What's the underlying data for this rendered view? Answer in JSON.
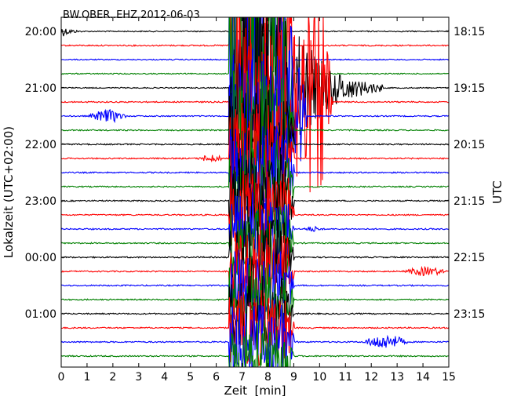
{
  "chart_data": {
    "type": "line",
    "title": "BW.OBER..EHZ 2012-06-03",
    "xlabel": "Zeit  [min]",
    "ylabel_left": "Lokalzeit (UTC+02:00)",
    "ylabel_right": "UTC",
    "xlim": [
      0,
      15
    ],
    "x_ticks": [
      "0",
      "1",
      "2",
      "3",
      "4",
      "5",
      "6",
      "7",
      "8",
      "9",
      "10",
      "11",
      "12",
      "13",
      "14",
      "15"
    ],
    "y_ticks_left": [
      "20:00",
      "21:00",
      "22:00",
      "23:00",
      "00:00",
      "01:00"
    ],
    "y_ticks_right": [
      "18:15",
      "19:15",
      "20:15",
      "21:15",
      "22:15",
      "23:15"
    ],
    "trace_colors": [
      "#000000",
      "#ff0000",
      "#0000ff",
      "#008000"
    ],
    "traces_per_row_label": 4,
    "traces": [
      {
        "color": "#000000",
        "noise": 0.12,
        "events": [
          {
            "t": 0.0,
            "t_end": 1.3,
            "amp": 1.3,
            "kind": "decay"
          }
        ]
      },
      {
        "color": "#ff0000",
        "noise": 0.14,
        "events": [
          {
            "t": 6.5,
            "t_end": 9.0,
            "amp": 20,
            "kind": "main"
          }
        ]
      },
      {
        "color": "#0000ff",
        "noise": 0.12,
        "events": [
          {
            "t": 6.5,
            "t_end": 9.0,
            "amp": 20,
            "kind": "main"
          }
        ]
      },
      {
        "color": "#008000",
        "noise": 0.12,
        "events": [
          {
            "t": 6.5,
            "t_end": 9.0,
            "amp": 20,
            "kind": "main"
          }
        ]
      },
      {
        "color": "#000000",
        "noise": 0.12,
        "events": [
          {
            "t": 6.5,
            "t_end": 12.5,
            "amp": 20,
            "kind": "coda"
          }
        ]
      },
      {
        "color": "#ff0000",
        "noise": 0.14,
        "events": [
          {
            "t": 6.5,
            "t_end": 10.5,
            "amp": 20,
            "kind": "main"
          }
        ]
      },
      {
        "color": "#0000ff",
        "noise": 0.13,
        "events": [
          {
            "t": 1.0,
            "t_end": 2.6,
            "amp": 1.4,
            "kind": "burst"
          },
          {
            "t": 6.5,
            "t_end": 9.5,
            "amp": 14,
            "kind": "main"
          }
        ]
      },
      {
        "color": "#008000",
        "noise": 0.14,
        "events": [
          {
            "t": 6.5,
            "t_end": 9.0,
            "amp": 14,
            "kind": "main"
          }
        ]
      },
      {
        "color": "#000000",
        "noise": 0.14,
        "events": [
          {
            "t": 6.5,
            "t_end": 9.0,
            "amp": 12,
            "kind": "main"
          }
        ]
      },
      {
        "color": "#ff0000",
        "noise": 0.14,
        "events": [
          {
            "t": 5.2,
            "t_end": 6.4,
            "amp": 0.8,
            "kind": "burst"
          },
          {
            "t": 6.5,
            "t_end": 9.0,
            "amp": 12,
            "kind": "main"
          }
        ]
      },
      {
        "color": "#0000ff",
        "noise": 0.14,
        "events": [
          {
            "t": 6.5,
            "t_end": 9.0,
            "amp": 10,
            "kind": "main"
          }
        ]
      },
      {
        "color": "#008000",
        "noise": 0.14,
        "events": [
          {
            "t": 6.5,
            "t_end": 9.0,
            "amp": 10,
            "kind": "main"
          }
        ]
      },
      {
        "color": "#000000",
        "noise": 0.14,
        "events": [
          {
            "t": 6.5,
            "t_end": 9.0,
            "amp": 10,
            "kind": "main"
          }
        ]
      },
      {
        "color": "#ff0000",
        "noise": 0.14,
        "events": [
          {
            "t": 6.5,
            "t_end": 9.0,
            "amp": 10,
            "kind": "main"
          }
        ]
      },
      {
        "color": "#0000ff",
        "noise": 0.14,
        "events": [
          {
            "t": 6.5,
            "t_end": 9.0,
            "amp": 8,
            "kind": "main"
          },
          {
            "t": 9.3,
            "t_end": 10.2,
            "amp": 0.6,
            "kind": "burst"
          }
        ]
      },
      {
        "color": "#008000",
        "noise": 0.14,
        "events": [
          {
            "t": 6.5,
            "t_end": 9.0,
            "amp": 8,
            "kind": "main"
          }
        ]
      },
      {
        "color": "#000000",
        "noise": 0.14,
        "events": [
          {
            "t": 6.5,
            "t_end": 9.0,
            "amp": 8,
            "kind": "main"
          }
        ]
      },
      {
        "color": "#ff0000",
        "noise": 0.14,
        "events": [
          {
            "t": 6.5,
            "t_end": 9.0,
            "amp": 8,
            "kind": "main"
          },
          {
            "t": 13.2,
            "t_end": 15.0,
            "amp": 1.0,
            "kind": "burst"
          }
        ]
      },
      {
        "color": "#0000ff",
        "noise": 0.14,
        "events": [
          {
            "t": 6.5,
            "t_end": 9.0,
            "amp": 8,
            "kind": "main"
          }
        ]
      },
      {
        "color": "#008000",
        "noise": 0.14,
        "events": [
          {
            "t": 6.5,
            "t_end": 9.0,
            "amp": 8,
            "kind": "main"
          }
        ]
      },
      {
        "color": "#000000",
        "noise": 0.14,
        "events": [
          {
            "t": 6.5,
            "t_end": 9.0,
            "amp": 8,
            "kind": "main"
          }
        ]
      },
      {
        "color": "#ff0000",
        "noise": 0.14,
        "events": [
          {
            "t": 6.5,
            "t_end": 9.0,
            "amp": 8,
            "kind": "main"
          }
        ]
      },
      {
        "color": "#0000ff",
        "noise": 0.14,
        "events": [
          {
            "t": 6.5,
            "t_end": 9.0,
            "amp": 8,
            "kind": "main"
          },
          {
            "t": 11.6,
            "t_end": 13.5,
            "amp": 1.6,
            "kind": "burst"
          }
        ]
      },
      {
        "color": "#008000",
        "noise": 0.14,
        "events": [
          {
            "t": 6.5,
            "t_end": 9.0,
            "amp": 8,
            "kind": "main"
          }
        ]
      }
    ]
  }
}
